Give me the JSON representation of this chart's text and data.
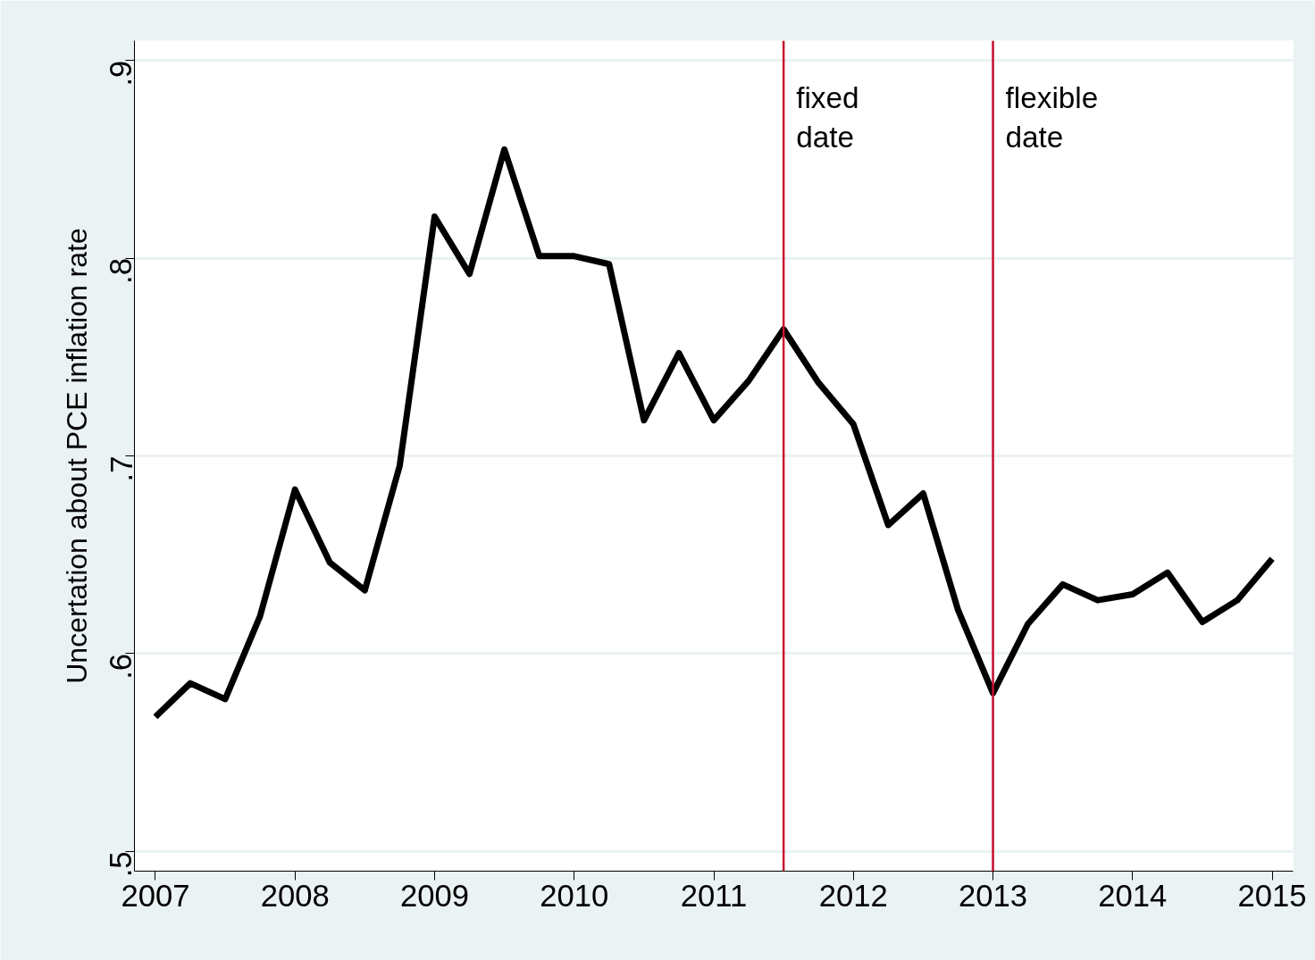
{
  "chart_data": {
    "type": "line",
    "ylabel": "Uncertation about PCE inflation rate",
    "x": [
      2007,
      2007.25,
      2007.5,
      2007.75,
      2008,
      2008.25,
      2008.5,
      2008.75,
      2009,
      2009.25,
      2009.5,
      2009.75,
      2010,
      2010.25,
      2010.5,
      2010.75,
      2011,
      2011.25,
      2011.5,
      2011.75,
      2012,
      2012.25,
      2012.5,
      2012.75,
      2013,
      2013.25,
      2013.5,
      2013.75,
      2014,
      2014.25,
      2014.5,
      2014.75,
      2015
    ],
    "series": [
      {
        "color": "#000000",
        "values": [
          0.568,
          0.585,
          0.577,
          0.619,
          0.683,
          0.646,
          0.632,
          0.695,
          0.821,
          0.792,
          0.855,
          0.801,
          0.801,
          0.797,
          0.718,
          0.752,
          0.718,
          0.738,
          0.764,
          0.737,
          0.716,
          0.665,
          0.681,
          0.622,
          0.58,
          0.615,
          0.635,
          0.627,
          0.63,
          0.641,
          0.616,
          0.627,
          0.648
        ]
      }
    ],
    "xlim": [
      2006.85,
      2015.15
    ],
    "ylim": [
      0.49,
      0.91
    ],
    "xticks": [
      2007,
      2008,
      2009,
      2010,
      2011,
      2012,
      2013,
      2014,
      2015
    ],
    "yticks": [
      {
        "value": 0.5,
        "label": ".5"
      },
      {
        "value": 0.6,
        "label": ".6"
      },
      {
        "value": 0.7,
        "label": ".7"
      },
      {
        "value": 0.8,
        "label": ".8"
      },
      {
        "value": 0.9,
        "label": ".9"
      }
    ],
    "ref_lines": [
      {
        "axis": "x",
        "value": 2011.5,
        "label": "fixed date",
        "color": "#c8102e"
      },
      {
        "axis": "x",
        "value": 2013,
        "label": "flexible date",
        "color": "#c8102e"
      }
    ],
    "grid": "y",
    "marker": "none",
    "line_style": "solid"
  }
}
